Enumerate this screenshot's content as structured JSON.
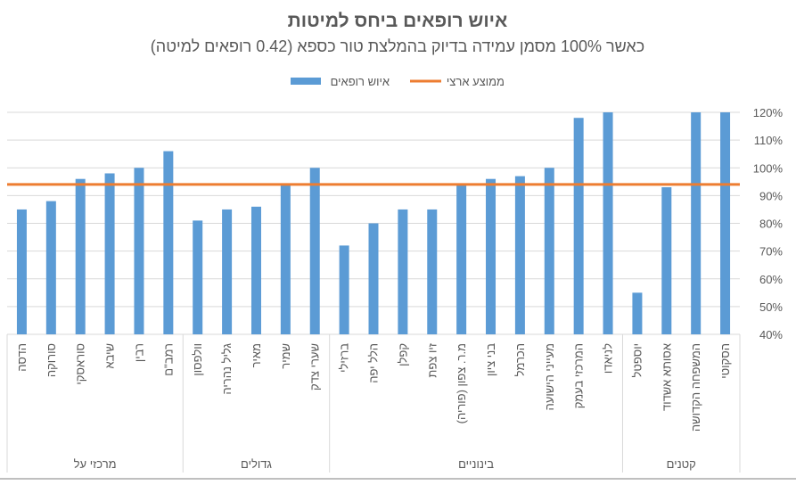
{
  "chart_data": {
    "type": "bar",
    "title": "איוש רופאים ביחס למיטות",
    "subtitle": "כאשר 100% מסמן עמידה בדיוק בהמלצת טור כספא (0.42 רופאים למיטה)",
    "legend": {
      "placement": "top",
      "entries": [
        {
          "name": "ממוצע ארצי",
          "type": "line"
        },
        {
          "name": "איוש רופאים",
          "type": "bar"
        }
      ]
    },
    "ylim": [
      40,
      120
    ],
    "yticks": [
      "40%",
      "50%",
      "60%",
      "70%",
      "80%",
      "90%",
      "100%",
      "110%",
      "120%"
    ],
    "grid": true,
    "y_axis_position": "right",
    "groups": [
      {
        "name": "מרכזי על",
        "count": 6
      },
      {
        "name": "גדולים",
        "count": 5
      },
      {
        "name": "בינוניים",
        "count": 10
      },
      {
        "name": "קטנים",
        "count": 4
      }
    ],
    "categories": [
      "הדסה",
      "סורוקה",
      "סוראסקי",
      "שיבא",
      "רבין",
      "רמב\"ם",
      "וולפסון",
      "גליל נהריה",
      "מאיר",
      "שמיר",
      "שערי צדק",
      "ברזילי",
      "הלל יפה",
      "קפלן",
      "זיו צפת",
      "מ.ר. צפון (פוריה)",
      "בני ציון",
      "הכרמל",
      "מעייני הישועה",
      "המרכזי בעמק",
      "לניאדו",
      "יוספטל",
      "אסותא אשדוד",
      "המשפחה הקדושה",
      "הסקוטי"
    ],
    "series": [
      {
        "name": "איוש רופאים",
        "type": "bar",
        "color": "#5B9BD5",
        "values": [
          85,
          88,
          96,
          98,
          100,
          106,
          81,
          85,
          86,
          94,
          100,
          72,
          80,
          85,
          85,
          94,
          96,
          97,
          100,
          118,
          120,
          55,
          93,
          120,
          120
        ]
      },
      {
        "name": "ממוצע ארצי",
        "type": "line",
        "color": "#ED7D31",
        "value": 94
      }
    ]
  }
}
